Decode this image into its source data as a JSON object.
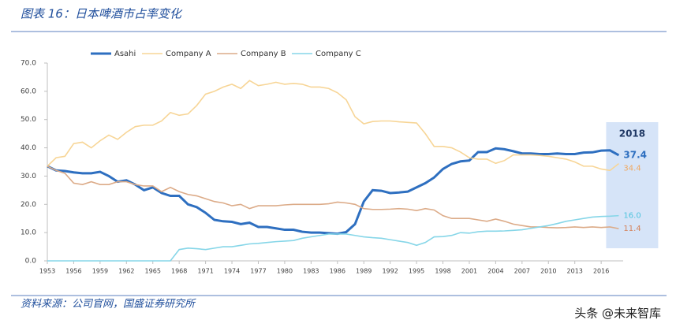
{
  "header": {
    "title": "图表 16：日本啤酒市占率变化"
  },
  "chart_data": {
    "type": "line",
    "x": [
      1953,
      1954,
      1955,
      1956,
      1957,
      1958,
      1959,
      1960,
      1961,
      1962,
      1963,
      1964,
      1965,
      1966,
      1967,
      1968,
      1969,
      1970,
      1971,
      1972,
      1973,
      1974,
      1975,
      1976,
      1977,
      1978,
      1979,
      1980,
      1981,
      1982,
      1983,
      1984,
      1985,
      1986,
      1987,
      1988,
      1989,
      1990,
      1991,
      1992,
      1993,
      1994,
      1995,
      1996,
      1997,
      1998,
      1999,
      2000,
      2001,
      2002,
      2003,
      2004,
      2005,
      2006,
      2007,
      2008,
      2009,
      2010,
      2011,
      2012,
      2013,
      2014,
      2015,
      2016,
      2017,
      2018
    ],
    "series": [
      {
        "name": "Asahi",
        "color": "#2e6fc0",
        "values": [
          33.5,
          32,
          31.8,
          31.3,
          31,
          31,
          31.5,
          30,
          28,
          28.5,
          27,
          25,
          26,
          24,
          23,
          23,
          20,
          19,
          17,
          14.5,
          14,
          13.8,
          13,
          13.5,
          12,
          12,
          11.5,
          11,
          11,
          10.3,
          10,
          10,
          9.8,
          9.6,
          10.2,
          13,
          21,
          25,
          24.8,
          24,
          24.2,
          24.5,
          26,
          27.5,
          29.5,
          32.5,
          34.3,
          35.2,
          35.5,
          38.5,
          38.5,
          39.8,
          39.5,
          38.8,
          38,
          38,
          37.8,
          37.8,
          38,
          37.8,
          37.8,
          38.3,
          38.4,
          39,
          39.1,
          37.4
        ],
        "value_labels": [
          null,
          null,
          null,
          null,
          null,
          null,
          null,
          null,
          null,
          null,
          null,
          null,
          null,
          null,
          null,
          null,
          null,
          null,
          null,
          null,
          null,
          null,
          null,
          null,
          null,
          null,
          null,
          null,
          null,
          null,
          null,
          null,
          null,
          null,
          null,
          null,
          null,
          null,
          null,
          null,
          null,
          null,
          null,
          null,
          null,
          null,
          null,
          null,
          null,
          null,
          null,
          null,
          null,
          null,
          null,
          null,
          null,
          null,
          null,
          null,
          null,
          null,
          null,
          null,
          null,
          "37.4"
        ]
      },
      {
        "name": "Company A",
        "color": "#f7d596",
        "values": [
          33.5,
          36.5,
          37,
          41.5,
          42,
          40,
          42.5,
          44.5,
          43,
          45.5,
          47.5,
          48,
          48,
          49.5,
          52.5,
          51.5,
          52,
          55,
          59,
          60,
          61.5,
          62.5,
          61,
          63.8,
          62,
          62.5,
          63.2,
          62.5,
          62.8,
          62.5,
          61.5,
          61.5,
          61,
          59.5,
          57,
          51,
          48.5,
          49.3,
          49.5,
          49.5,
          49.2,
          49,
          48.8,
          45,
          40.5,
          40.5,
          40,
          38.5,
          36.5,
          36,
          36,
          34.5,
          35.5,
          37.5,
          37.5,
          37.5,
          37.3,
          37,
          36.5,
          36,
          35,
          33.5,
          33.5,
          32.5,
          32,
          34.4
        ],
        "value_labels": [
          null,
          null,
          null,
          null,
          null,
          null,
          null,
          null,
          null,
          null,
          null,
          null,
          null,
          null,
          null,
          null,
          null,
          null,
          null,
          null,
          null,
          null,
          null,
          null,
          null,
          null,
          null,
          null,
          null,
          null,
          null,
          null,
          null,
          null,
          null,
          null,
          null,
          null,
          null,
          null,
          null,
          null,
          null,
          null,
          null,
          null,
          null,
          null,
          null,
          null,
          null,
          null,
          null,
          null,
          null,
          null,
          null,
          null,
          null,
          null,
          null,
          null,
          null,
          null,
          null,
          "34.4"
        ]
      },
      {
        "name": "Company B",
        "color": "#dcab88",
        "values": [
          33.5,
          32,
          31,
          27.5,
          27,
          28,
          27,
          27,
          28,
          28,
          27,
          26.5,
          26.5,
          24.5,
          26,
          24.5,
          23.5,
          23,
          22,
          21,
          20.5,
          19.5,
          20,
          18.5,
          19.5,
          19.5,
          19.5,
          19.8,
          20,
          20,
          20,
          20,
          20.2,
          20.8,
          20.5,
          20,
          18.5,
          18.2,
          18.2,
          18.3,
          18.5,
          18.3,
          17.8,
          18.5,
          18,
          16,
          15,
          15,
          15,
          14.5,
          14,
          14.8,
          14,
          13,
          12.5,
          12,
          12,
          11.8,
          11.7,
          11.8,
          12,
          11.8,
          12,
          11.8,
          12,
          11.4
        ],
        "value_labels": [
          null,
          null,
          null,
          null,
          null,
          null,
          null,
          null,
          null,
          null,
          null,
          null,
          null,
          null,
          null,
          null,
          null,
          null,
          null,
          null,
          null,
          null,
          null,
          null,
          null,
          null,
          null,
          null,
          null,
          null,
          null,
          null,
          null,
          null,
          null,
          null,
          null,
          null,
          null,
          null,
          null,
          null,
          null,
          null,
          null,
          null,
          null,
          null,
          null,
          null,
          null,
          null,
          null,
          null,
          null,
          null,
          null,
          null,
          null,
          null,
          null,
          null,
          null,
          null,
          null,
          "11.4"
        ]
      },
      {
        "name": "Company C",
        "color": "#86d6e8",
        "values": [
          0,
          0,
          0,
          0,
          0,
          0,
          0,
          0,
          0,
          0,
          0,
          0,
          0,
          0,
          0,
          4,
          4.5,
          4.3,
          4,
          4.5,
          5,
          5,
          5.5,
          6,
          6.2,
          6.5,
          6.8,
          7,
          7.2,
          8,
          8.5,
          9,
          9.5,
          9.5,
          9.5,
          9,
          8.5,
          8.2,
          8,
          7.5,
          7,
          6.5,
          5.5,
          6.5,
          8.5,
          8.6,
          9,
          10,
          9.8,
          10.3,
          10.5,
          10.5,
          10.6,
          10.8,
          11,
          11.5,
          12,
          12.5,
          13.2,
          14,
          14.5,
          15,
          15.5,
          15.7,
          15.8,
          16
        ],
        "value_labels": [
          null,
          null,
          null,
          null,
          null,
          null,
          null,
          null,
          null,
          null,
          null,
          null,
          null,
          null,
          null,
          null,
          null,
          null,
          null,
          null,
          null,
          null,
          null,
          null,
          null,
          null,
          null,
          null,
          null,
          null,
          null,
          null,
          null,
          null,
          null,
          null,
          null,
          null,
          null,
          null,
          null,
          null,
          null,
          null,
          null,
          null,
          null,
          null,
          null,
          null,
          null,
          null,
          null,
          null,
          null,
          null,
          null,
          null,
          null,
          null,
          null,
          null,
          null,
          null,
          null,
          "16.0"
        ]
      }
    ],
    "highlight_label": "2018",
    "xlim": [
      1953,
      2018.5
    ],
    "xticks": [
      1953,
      1956,
      1959,
      1962,
      1965,
      1968,
      1971,
      1974,
      1977,
      1980,
      1983,
      1986,
      1989,
      1992,
      1995,
      1998,
      2001,
      2004,
      2007,
      2010,
      2013,
      2016
    ],
    "ylim": [
      0,
      70
    ],
    "yticks": [
      {
        "value": 0,
        "label": "0.0"
      },
      {
        "value": 10,
        "label": "10.0"
      },
      {
        "value": 20,
        "label": "20.0"
      },
      {
        "value": 30,
        "label": "30.0"
      },
      {
        "value": 40,
        "label": "40.0"
      },
      {
        "value": 50,
        "label": "50.0"
      },
      {
        "value": 60,
        "label": "60.0"
      },
      {
        "value": 70,
        "label": "70.0"
      }
    ],
    "legend": "top"
  },
  "footer": {
    "source": "资料来源：公司官网，国盛证券研究所",
    "watermark": "头条 @未来智库"
  }
}
